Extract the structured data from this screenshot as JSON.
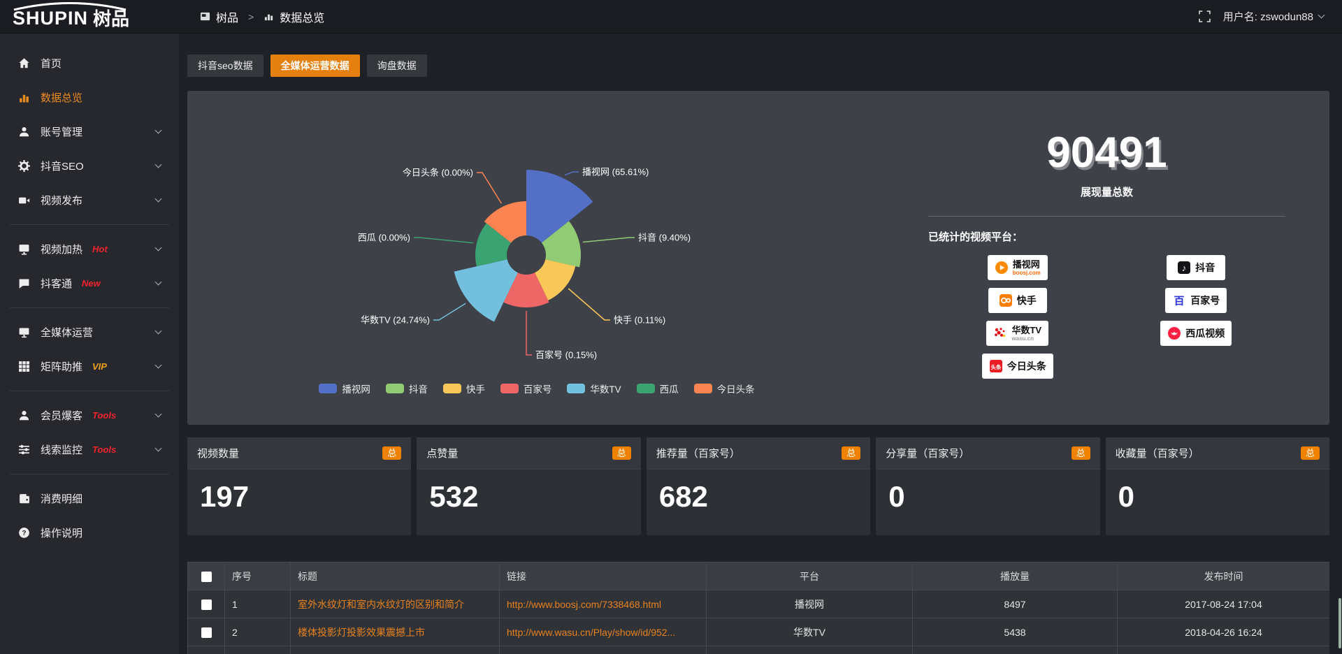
{
  "theme": {
    "accent": "#e5800f",
    "link_color": "#e8821e",
    "badge_color": "#f08200",
    "sidebar_active": "#ef8b1f"
  },
  "header": {
    "logo_en": "SHUPIN",
    "logo_cn": "树品",
    "username": "用户名: zswodun88"
  },
  "breadcrumb": {
    "root": "树品",
    "separator": ">",
    "current": "数据总览"
  },
  "sidebar": {
    "items": [
      {
        "label": "首页",
        "icon": "home"
      },
      {
        "label": "数据总览",
        "icon": "chart-bars",
        "active": true
      },
      {
        "label": "账号管理",
        "icon": "user",
        "chevron": true
      },
      {
        "label": "抖音SEO",
        "icon": "gear",
        "chevron": true
      },
      {
        "label": "视频发布",
        "icon": "video-camera",
        "chevron": true,
        "divider_after": true
      },
      {
        "label": "视频加热",
        "icon": "screen-play",
        "tag": "Hot",
        "tag_color": "#f5222d",
        "chevron": true
      },
      {
        "label": "抖客通",
        "icon": "chat-bubble",
        "tag": "New",
        "tag_color": "#f5222d",
        "chevron": true,
        "divider_after": true
      },
      {
        "label": "全媒体运营",
        "icon": "monitor",
        "chevron": true
      },
      {
        "label": "矩阵助推",
        "icon": "grid",
        "tag": "VIP",
        "tag_color": "#f0a020",
        "chevron": true,
        "divider_after": true
      },
      {
        "label": "会员爆客",
        "icon": "user",
        "tag": "Tools",
        "tag_color": "#f5222d",
        "chevron": true
      },
      {
        "label": "线索监控",
        "icon": "sliders",
        "tag": "Tools",
        "tag_color": "#f5222d",
        "chevron": true,
        "divider_after": true
      },
      {
        "label": "消费明细",
        "icon": "wallet"
      },
      {
        "label": "操作说明",
        "icon": "question-circle"
      }
    ]
  },
  "tabs": [
    {
      "label": "抖音seo数据",
      "active": false
    },
    {
      "label": "全媒体运营数据",
      "active": true
    },
    {
      "label": "询盘数据",
      "active": false
    }
  ],
  "chart_data": {
    "type": "pie",
    "variant": "nightingale-rose",
    "categories": [
      "播视网",
      "抖音",
      "快手",
      "百家号",
      "华数TV",
      "西瓜",
      "今日头条"
    ],
    "percentages": [
      65.61,
      9.4,
      0.11,
      0.15,
      24.74,
      0.0,
      0.0
    ],
    "label_texts": [
      "播视网 (65.61%)",
      "抖音 (9.40%)",
      "快手 (0.11%)",
      "百家号 (0.15%)",
      "华数TV (24.74%)",
      "西瓜 (0.00%)",
      "今日头条 (0.00%)"
    ],
    "colors": [
      "#5470c6",
      "#91cc75",
      "#fac858",
      "#ee6666",
      "#73c0de",
      "#3ba272",
      "#fc8452"
    ],
    "legend": [
      "播视网",
      "抖音",
      "快手",
      "百家号",
      "华数TV",
      "西瓜",
      "今日头条"
    ],
    "legend_position": "bottom",
    "render_hints": {
      "center": [
        485,
        235
      ],
      "inner_radius": 28,
      "outer_radii": [
        122,
        78,
        72,
        75,
        106,
        73,
        77
      ],
      "equal_angles": true,
      "labels": [
        {
          "side": "right",
          "elbow": [
            552,
            116
          ]
        },
        {
          "side": "right",
          "elbow": [
            632,
            210
          ]
        },
        {
          "side": "right",
          "elbow": [
            597,
            328
          ]
        },
        {
          "side": "right",
          "elbow": [
            485,
            378
          ]
        },
        {
          "side": "left",
          "elbow": [
            360,
            328
          ]
        },
        {
          "side": "left",
          "elbow": [
            332,
            210
          ]
        },
        {
          "side": "left",
          "elbow": [
            422,
            117
          ]
        }
      ]
    }
  },
  "summary": {
    "value": "90491",
    "label": "展现量总数"
  },
  "platforms": {
    "title": "已统计的视频平台：",
    "left": [
      {
        "name": "播视网",
        "sub": "boosj.com",
        "sub_color": "#f60",
        "icon": "boosj"
      },
      {
        "name": "快手",
        "icon": "kuaishou"
      },
      {
        "name": "华数TV",
        "sub": "wasu.cn",
        "sub_color": "#999",
        "icon": "wasu"
      },
      {
        "name": "今日头条",
        "icon": "toutiao"
      }
    ],
    "right": [
      {
        "name": "抖音",
        "icon": "douyin"
      },
      {
        "name": "百家号",
        "icon": "baijiahao"
      },
      {
        "name": "西瓜视频",
        "icon": "xigua"
      }
    ]
  },
  "stat_cards": [
    {
      "title": "视频数量",
      "badge": "总",
      "value": "197"
    },
    {
      "title": "点赞量",
      "badge": "总",
      "value": "532"
    },
    {
      "title": "推荐量（百家号）",
      "badge": "总",
      "value": "682"
    },
    {
      "title": "分享量（百家号）",
      "badge": "总",
      "value": "0"
    },
    {
      "title": "收藏量（百家号）",
      "badge": "总",
      "value": "0"
    }
  ],
  "table": {
    "headers": [
      "序号",
      "标题",
      "链接",
      "平台",
      "播放量",
      "发布时间"
    ],
    "rows": [
      {
        "cells": [
          "1",
          "室外水纹灯和室内水纹灯的区别和简介",
          "http://www.boosj.com/7338468.html",
          "播视网",
          "8497",
          "2017-08-24 17:04"
        ]
      },
      {
        "cells": [
          "2",
          "楼体投影灯投影效果震撼上市",
          "http://www.wasu.cn/Play/show/id/952...",
          "华数TV",
          "5438",
          "2018-04-26 16:24"
        ]
      }
    ]
  }
}
